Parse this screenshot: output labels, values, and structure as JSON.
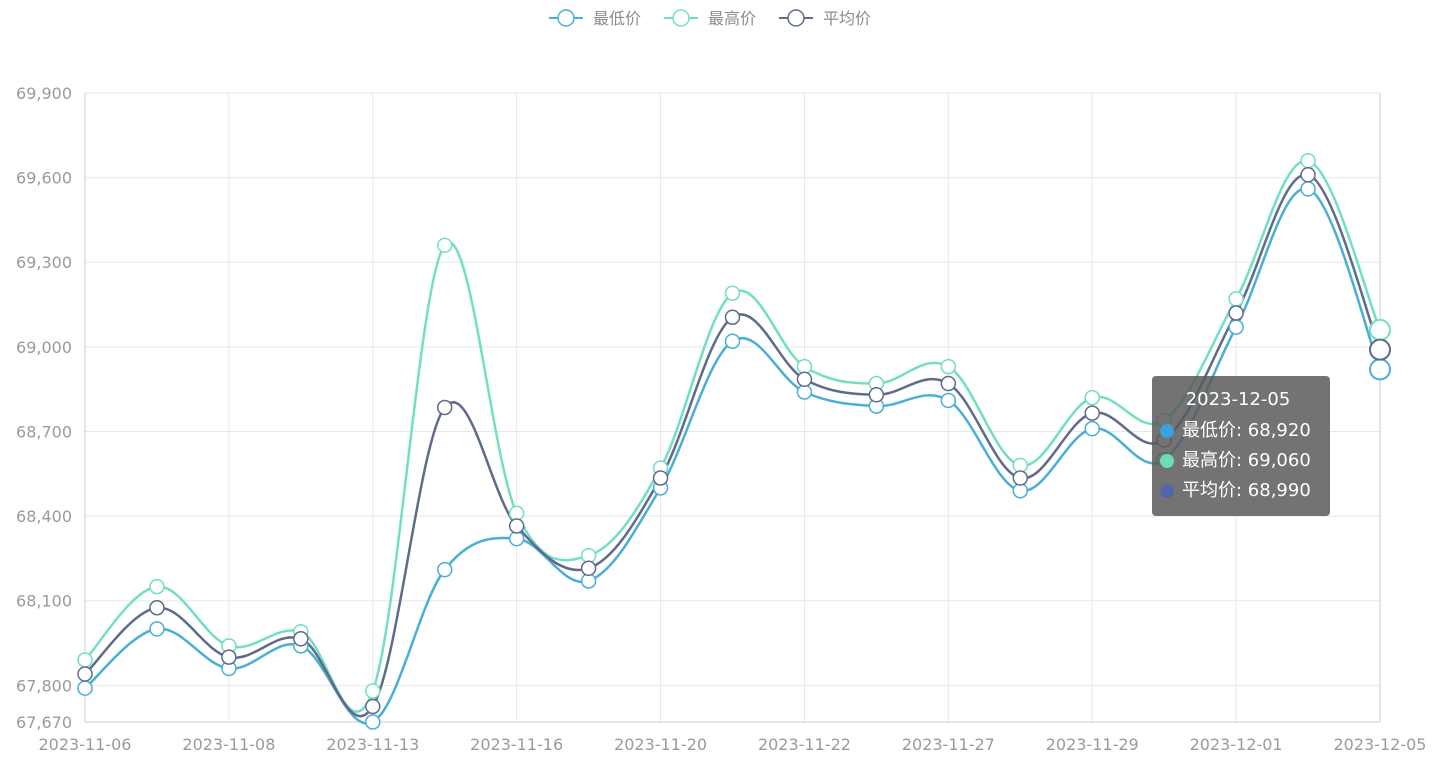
{
  "colors": {
    "series": [
      "#4aaed6",
      "#72dfc3",
      "#5f6b8a"
    ],
    "tooltip_dots": [
      "#3aa0e0",
      "#6cdcb2",
      "#5266a8"
    ],
    "grid": "#e8e8e8",
    "axis": "#cccccc",
    "tick_text": "#9a9a9a",
    "legend_text": "#8c8c8c"
  },
  "chart_data": {
    "type": "line",
    "smooth": true,
    "legend_position": "top-center",
    "grid": true,
    "ylim": [
      67670,
      69900
    ],
    "y_ticks": [
      67670,
      67800,
      68100,
      68400,
      68700,
      69000,
      69300,
      69600,
      69900
    ],
    "y_tick_labels": [
      "67,670",
      "67,800",
      "68,100",
      "68,400",
      "68,700",
      "69,000",
      "69,300",
      "69,600",
      "69,900"
    ],
    "x": [
      "2023-11-06",
      "2023-11-07",
      "2023-11-08",
      "2023-11-10",
      "2023-11-13",
      "2023-11-14",
      "2023-11-16",
      "2023-11-17",
      "2023-11-20",
      "2023-11-21",
      "2023-11-22",
      "2023-11-24",
      "2023-11-27",
      "2023-11-28",
      "2023-11-29",
      "2023-11-30",
      "2023-12-01",
      "2023-12-04",
      "2023-12-05"
    ],
    "x_tick_labels": [
      "2023-11-06",
      "2023-11-08",
      "2023-11-13",
      "2023-11-16",
      "2023-11-20",
      "2023-11-22",
      "2023-11-27",
      "2023-11-29",
      "2023-12-01",
      "2023-12-05"
    ],
    "series": [
      {
        "name": "最低价",
        "values": [
          67790,
          68000,
          67860,
          67940,
          67670,
          68210,
          68320,
          68170,
          68500,
          69020,
          68840,
          68790,
          68810,
          68490,
          68710,
          68600,
          69070,
          69560,
          68920
        ]
      },
      {
        "name": "最高价",
        "values": [
          67890,
          68150,
          67940,
          67990,
          67780,
          69360,
          68410,
          68260,
          68570,
          69190,
          68930,
          68870,
          68930,
          68580,
          68820,
          68740,
          69170,
          69660,
          69060
        ]
      },
      {
        "name": "平均价",
        "values": [
          67840,
          68075,
          67900,
          67965,
          67725,
          68785,
          68365,
          68215,
          68535,
          69105,
          68885,
          68830,
          68870,
          68535,
          68765,
          68670,
          69120,
          69610,
          68990
        ]
      }
    ],
    "highlight_index": 18
  },
  "tooltip": {
    "title": "2023-12-05",
    "rows": [
      {
        "label": "最低价: 68,920"
      },
      {
        "label": "最高价: 69,060"
      },
      {
        "label": "平均价: 68,990"
      }
    ]
  }
}
